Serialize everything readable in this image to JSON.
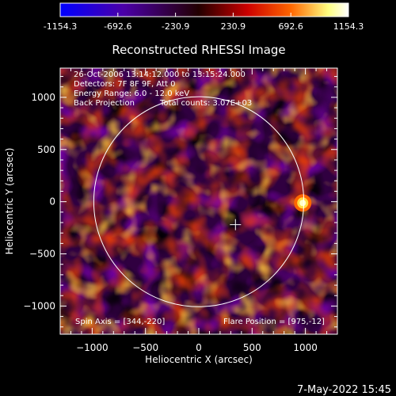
{
  "chart_data": {
    "type": "heatmap",
    "title": "Reconstructed RHESSI Image",
    "xlabel": "Heliocentric X (arcsec)",
    "ylabel": "Heliocentric Y (arcsec)",
    "xlim": [
      -1300,
      1300
    ],
    "ylim": [
      -1270,
      1280
    ],
    "xticks": [
      -1000,
      -500,
      0,
      500,
      1000
    ],
    "yticks": [
      -1000,
      -500,
      0,
      500,
      1000
    ],
    "colorbar": {
      "range": [
        -1154.3,
        1154.3
      ],
      "ticks": [
        "-1154.3",
        "-692.6",
        "-230.9",
        "230.9",
        "692.6",
        "1154.3"
      ],
      "colors": [
        "#0000ff",
        "#4b00a8",
        "#2a0000",
        "#cc0000",
        "#ff6600",
        "#ffff80",
        "#ffffff"
      ]
    },
    "annotations": [
      "26-Oct-2006 13:14:12.000 to 13:15:24.000",
      "Detectors: 7F 8F 9F, Att 0",
      "Energy Range: 6.0 - 12.0 keV",
      "Back Projection",
      "Total counts: 3.07E+03",
      "Spin Axis = [344,-220]",
      "Flare Position = [975,-12]"
    ],
    "solar_limb_radius_arcsec": 985,
    "spin_axis": [
      344,
      -220
    ],
    "flare_position": [
      975,
      -12
    ],
    "timestamp": "7-May-2022 15:45"
  }
}
